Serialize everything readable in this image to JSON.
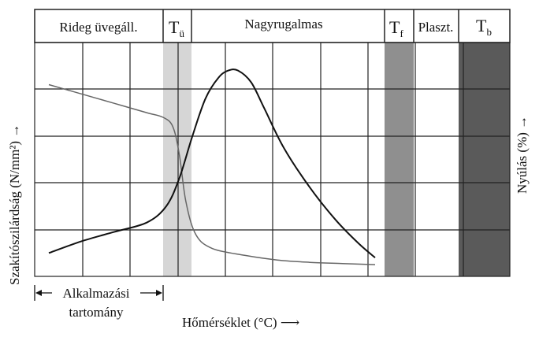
{
  "regions": [
    {
      "label": "Rideg üvegáll.",
      "sub": ""
    },
    {
      "label": "T",
      "sub": "ü"
    },
    {
      "label": "Nagyrugalmas",
      "sub": ""
    },
    {
      "label": "T",
      "sub": "f"
    },
    {
      "label": "Plaszt.",
      "sub": ""
    },
    {
      "label": "T",
      "sub": "b"
    }
  ],
  "y_left_label": "Szakítószilárdság (N/mm²) →",
  "y_right_label": "Nyúlás (%) →",
  "x_label": "Hőmérséklet (°C) ⟶",
  "application_range": {
    "line1": "Alkalmazási",
    "line2": "tartomány"
  },
  "colors": {
    "tu_band": "#d6d6d6",
    "tf_band": "#8f8f8f",
    "tb_band": "#5a5a5a",
    "curve": "#111111",
    "strength_curve": "#666666",
    "grid": "#222222"
  },
  "chart_data": {
    "type": "line",
    "xlabel": "Hőmérséklet (°C)",
    "ylabel": "Szakítószilárdság (N/mm²)",
    "y2label": "Nyúlás (%)",
    "grid": true,
    "x_range": [
      0,
      100
    ],
    "y_range": [
      0,
      100
    ],
    "series": [
      {
        "name": "Szakítószilárdság",
        "x": [
          0,
          10,
          20,
          30,
          35,
          38,
          40,
          42,
          45,
          50,
          60,
          70,
          80,
          90,
          100
        ],
        "y": [
          82,
          78,
          74,
          70,
          68,
          64,
          52,
          32,
          18,
          12,
          9,
          7,
          6,
          5.5,
          5
        ]
      },
      {
        "name": "Nyúlás",
        "x": [
          0,
          10,
          20,
          30,
          36,
          40,
          44,
          48,
          52,
          55,
          58,
          62,
          66,
          72,
          80,
          88,
          95,
          100
        ],
        "y": [
          10,
          15,
          19,
          23,
          30,
          42,
          60,
          76,
          85,
          88,
          88,
          83,
          72,
          55,
          38,
          24,
          14,
          8
        ]
      }
    ]
  }
}
